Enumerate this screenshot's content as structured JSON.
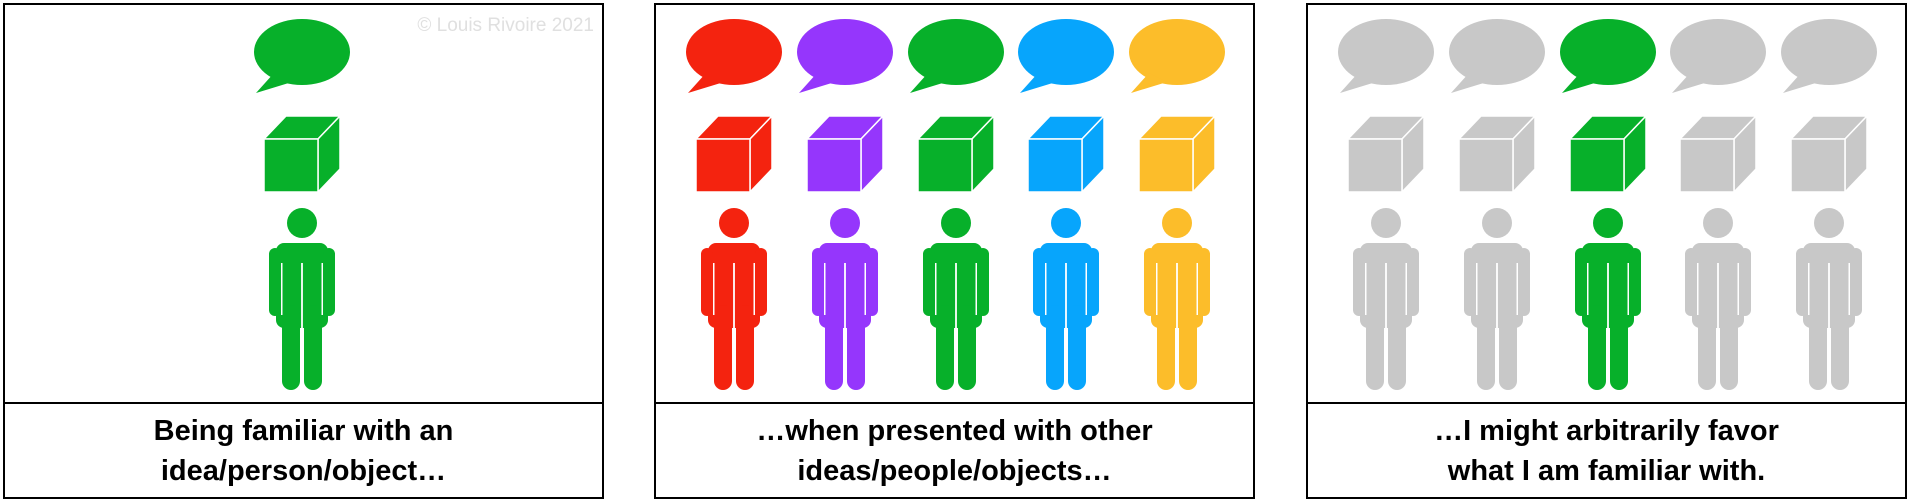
{
  "copyright": "© Louis Rivoire 2021",
  "colors": {
    "green": "#07b02a",
    "red": "#f4230f",
    "purple": "#9536fc",
    "blue": "#07a5fc",
    "yellow": "#fcbd2a",
    "gray": "#c8c8c8"
  },
  "panels": [
    {
      "caption_lines": [
        "Being familiar with an",
        "idea/person/object…"
      ],
      "figures": [
        {
          "speech_color": "green",
          "box_color": "green",
          "person_color": "green"
        }
      ]
    },
    {
      "caption_lines": [
        "…when presented with other",
        "ideas/people/objects…"
      ],
      "figures": [
        {
          "speech_color": "red",
          "box_color": "red",
          "person_color": "red"
        },
        {
          "speech_color": "purple",
          "box_color": "purple",
          "person_color": "purple"
        },
        {
          "speech_color": "green",
          "box_color": "green",
          "person_color": "green"
        },
        {
          "speech_color": "blue",
          "box_color": "blue",
          "person_color": "blue"
        },
        {
          "speech_color": "yellow",
          "box_color": "yellow",
          "person_color": "yellow"
        }
      ]
    },
    {
      "caption_lines": [
        "…I might arbitrarily favor",
        "what I am familiar with."
      ],
      "figures": [
        {
          "speech_color": "gray",
          "box_color": "gray",
          "person_color": "gray"
        },
        {
          "speech_color": "gray",
          "box_color": "gray",
          "person_color": "gray"
        },
        {
          "speech_color": "green",
          "box_color": "green",
          "person_color": "green"
        },
        {
          "speech_color": "gray",
          "box_color": "gray",
          "person_color": "gray"
        },
        {
          "speech_color": "gray",
          "box_color": "gray",
          "person_color": "gray"
        }
      ]
    }
  ]
}
